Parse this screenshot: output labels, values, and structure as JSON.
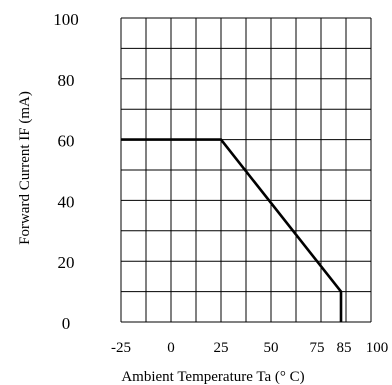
{
  "chart_data": {
    "type": "line",
    "xlabel": "Ambient Temperature Ta (° C)",
    "ylabel": "Forward Current IF (mA)",
    "x_ticks": [
      -25,
      0,
      25,
      50,
      75,
      85,
      100
    ],
    "y_ticks": [
      0,
      20,
      40,
      60,
      80,
      100
    ],
    "xlim": [
      -25,
      100
    ],
    "ylim": [
      0,
      100
    ],
    "grid": true,
    "series": [
      {
        "x": [
          -25,
          25,
          85,
          85
        ],
        "y": [
          60,
          60,
          10,
          0
        ]
      }
    ]
  }
}
